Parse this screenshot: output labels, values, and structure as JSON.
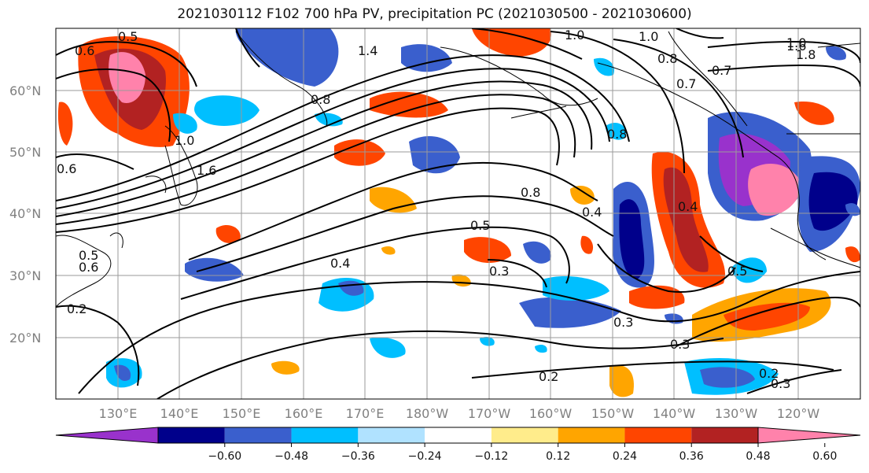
{
  "title": "2021030112 F102 700 hPa PV, precipitation PC (2021030500 - 2021030600)",
  "lat_labels": [
    "60°N",
    "50°N",
    "40°N",
    "30°N",
    "20°N"
  ],
  "lon_labels": [
    "130°E",
    "140°E",
    "150°E",
    "160°E",
    "170°E",
    "180°W",
    "170°W",
    "160°W",
    "150°W",
    "140°W",
    "130°W",
    "120°W"
  ],
  "colorbar": {
    "ticks": [
      "−0.60",
      "−0.48",
      "−0.36",
      "−0.24",
      "−0.12",
      "0.12",
      "0.24",
      "0.36",
      "0.48",
      "0.60"
    ],
    "colors": [
      "#9932cc",
      "#00008b",
      "#3a5fcd",
      "#00bfff",
      "#b0e2ff",
      "#ffffff",
      "#ffec8b",
      "#ffa500",
      "#ff4500",
      "#b22222",
      "#ff82ab"
    ]
  },
  "contour_labels": [
    "0.5",
    "0.6",
    "1.4",
    "1.0",
    "1.0",
    "1.0",
    "0.8",
    "0.7",
    "0.8",
    "0.8",
    "1.0",
    "1.6",
    "0.6",
    "0.8",
    "0.5",
    "0.4",
    "0.4",
    "0.4",
    "0.3",
    "0.3",
    "0.5",
    "0.2",
    "0.3",
    "0.2",
    "0.2",
    "0.3",
    "0.5",
    "0.6",
    "1.6",
    "0.7",
    "1.8"
  ]
}
